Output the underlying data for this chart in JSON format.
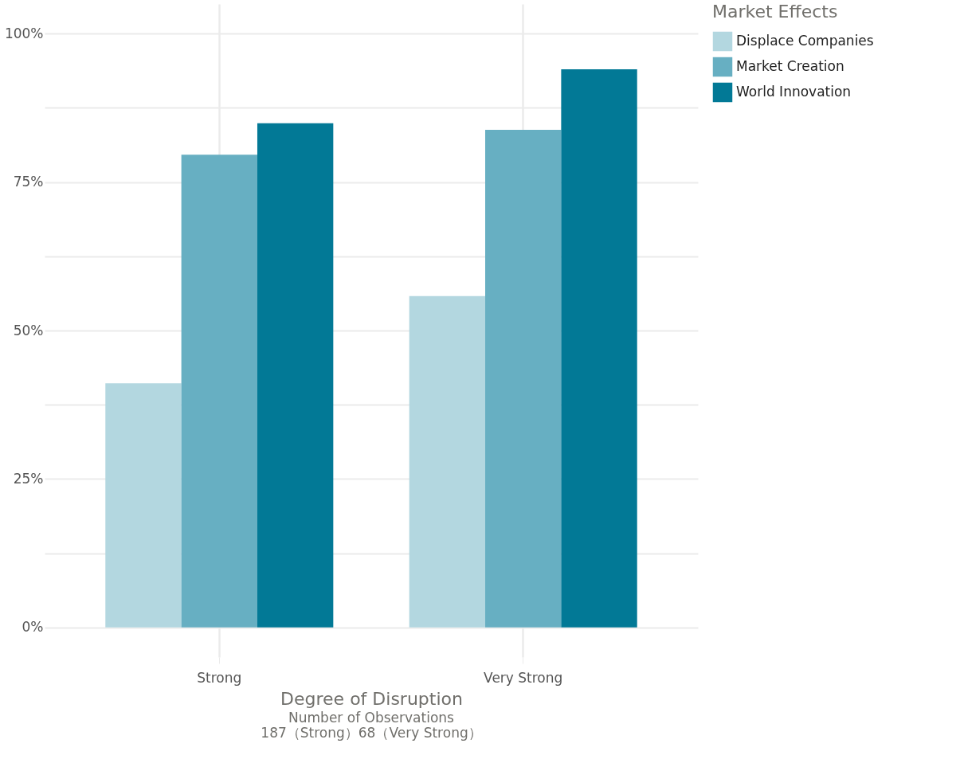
{
  "chart_data": {
    "type": "bar",
    "categories": [
      "Strong",
      "Very Strong"
    ],
    "series": [
      {
        "name": "Displace Companies",
        "color": "#b3d7e0",
        "values": [
          41.1,
          55.8
        ]
      },
      {
        "name": "Market Creation",
        "color": "#67afc2",
        "values": [
          79.6,
          83.8
        ]
      },
      {
        "name": "World Innovation",
        "color": "#027996",
        "values": [
          84.9,
          94.0
        ]
      }
    ],
    "xlabel": "Degree of Disruption",
    "legend_title": "Market Effects",
    "annotations": [
      "Number of Observations",
      "187（Strong）68（Very Strong）"
    ],
    "ylim": [
      -5,
      105
    ],
    "yticks": [
      {
        "value": 0,
        "label": "0%"
      },
      {
        "value": 12.5,
        "label": null
      },
      {
        "value": 25,
        "label": "25%"
      },
      {
        "value": 37.5,
        "label": null
      },
      {
        "value": 50,
        "label": "50%"
      },
      {
        "value": 62.5,
        "label": null
      },
      {
        "value": 75,
        "label": "75%"
      },
      {
        "value": 87.5,
        "label": null
      },
      {
        "value": 100,
        "label": "100%"
      }
    ],
    "grid": true,
    "legend": "right"
  }
}
